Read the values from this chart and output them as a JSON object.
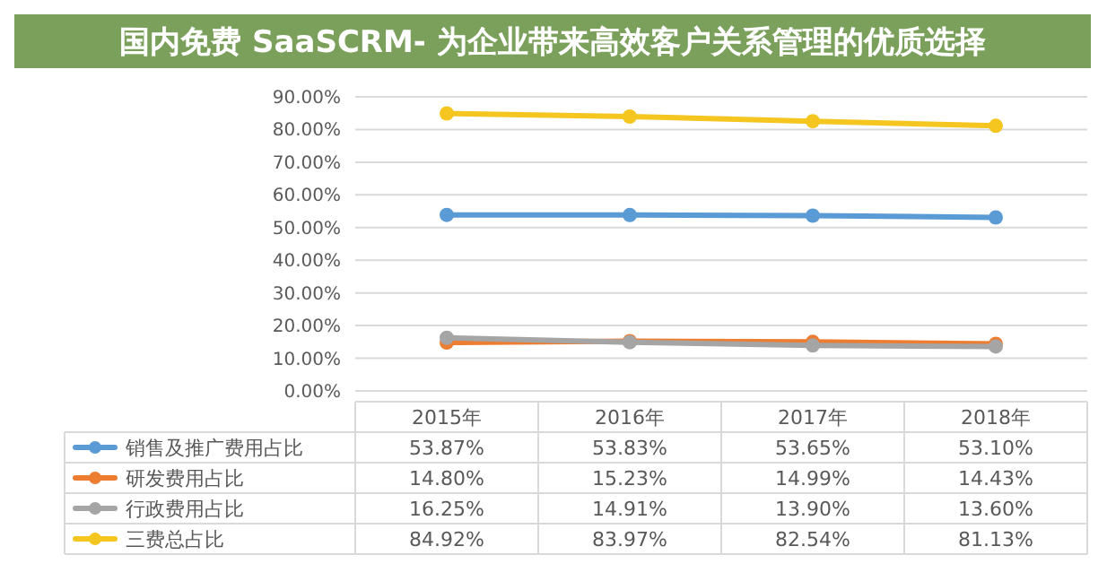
{
  "chart_data": {
    "type": "line",
    "title": "国内免费 SaaSCRM- 为企业带来高效客户关系管理的优质选择",
    "categories": [
      "2015年",
      "2016年",
      "2017年",
      "2018年"
    ],
    "series": [
      {
        "name": "销售及推广费用占比",
        "color": "#5b9bd5",
        "values": [
          53.87,
          53.83,
          53.65,
          53.1
        ],
        "value_labels": [
          "53.87%",
          "53.83%",
          "53.65%",
          "53.10%"
        ]
      },
      {
        "name": "研发费用占比",
        "color": "#ed7d31",
        "values": [
          14.8,
          15.23,
          14.99,
          14.43
        ],
        "value_labels": [
          "14.80%",
          "15.23%",
          "14.99%",
          "14.43%"
        ]
      },
      {
        "name": "行政费用占比",
        "color": "#a5a5a5",
        "values": [
          16.25,
          14.91,
          13.9,
          13.6
        ],
        "value_labels": [
          "16.25%",
          "14.91%",
          "13.90%",
          "13.60%"
        ]
      },
      {
        "name": "三费总占比",
        "color": "#f4c61f",
        "values": [
          84.92,
          83.97,
          82.54,
          81.13
        ],
        "value_labels": [
          "84.92%",
          "83.97%",
          "82.54%",
          "81.13%"
        ]
      }
    ],
    "ylim": [
      0,
      90
    ],
    "yticks": [
      {
        "value": 0,
        "label": "0.00%"
      },
      {
        "value": 10,
        "label": "10.00%"
      },
      {
        "value": 20,
        "label": "20.00%"
      },
      {
        "value": 30,
        "label": "30.00%"
      },
      {
        "value": 40,
        "label": "40.00%"
      },
      {
        "value": 50,
        "label": "50.00%"
      },
      {
        "value": 60,
        "label": "60.00%"
      },
      {
        "value": 70,
        "label": "70.00%"
      },
      {
        "value": 80,
        "label": "80.00%"
      },
      {
        "value": 90,
        "label": "90.00%"
      }
    ],
    "grid": "y",
    "legend": "bottom",
    "marker": "circle",
    "line_style": "solid"
  }
}
